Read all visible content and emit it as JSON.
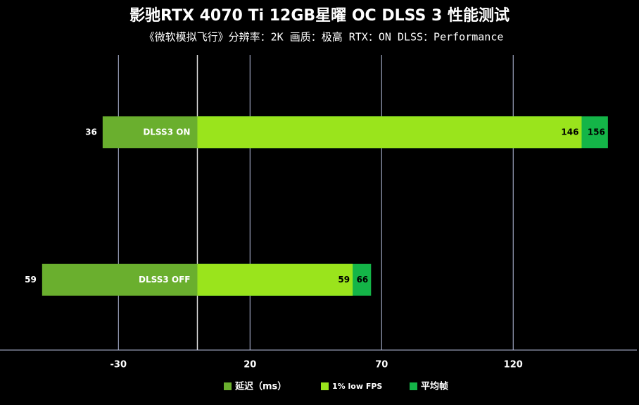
{
  "chart_data": {
    "type": "bar",
    "title": "影驰RTX 4070 Ti 12GB星曜 OC DLSS 3 性能测试",
    "subtitle": "《微软模拟飞行》分辨率：2K 画质：极高  RTX：ON  DLSS：Performance",
    "categories": [
      "DLSS3 ON",
      "DLSS3 OFF"
    ],
    "series": [
      {
        "name": "延迟（ms）",
        "color": "#6aaf2e",
        "values": [
          36,
          59
        ]
      },
      {
        "name": "1% low FPS",
        "color": "#9ae41c",
        "values": [
          146,
          59
        ]
      },
      {
        "name": "平均帧",
        "color": "#14b548",
        "values": [
          156,
          66
        ]
      }
    ],
    "xlim": [
      -75,
      167
    ],
    "xticks": [
      -30,
      20,
      70,
      120
    ],
    "grid": true
  }
}
